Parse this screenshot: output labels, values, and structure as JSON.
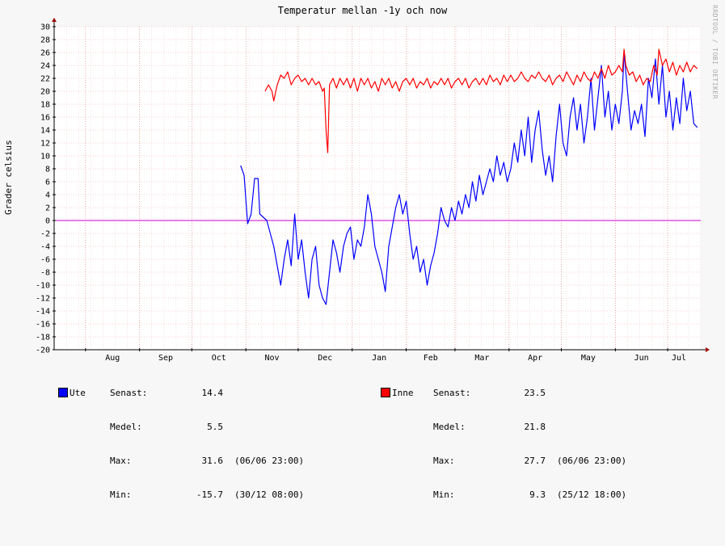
{
  "chart_data": {
    "type": "line",
    "title": "Temperatur mellan -1y och now",
    "ylabel": "Grader celsius",
    "xlabel": "",
    "ylim": [
      -20,
      30
    ],
    "yticks": [
      -20,
      -18,
      -16,
      -14,
      -12,
      -10,
      -8,
      -6,
      -4,
      -2,
      0,
      2,
      4,
      6,
      8,
      10,
      12,
      14,
      16,
      18,
      20,
      22,
      24,
      26,
      28,
      30
    ],
    "x_domain": [
      "Jul 14",
      "Jul 20"
    ],
    "months": [
      {
        "label": "Aug",
        "start": "Aug 1"
      },
      {
        "label": "Sep",
        "start": "Sep 1"
      },
      {
        "label": "Oct",
        "start": "Oct 1"
      },
      {
        "label": "Nov",
        "start": "Nov 1"
      },
      {
        "label": "Dec",
        "start": "Dec 1"
      },
      {
        "label": "Jan",
        "start": "Jan 1"
      },
      {
        "label": "Feb",
        "start": "Feb 1"
      },
      {
        "label": "Mar",
        "start": "Mar 1"
      },
      {
        "label": "Apr",
        "start": "Apr 1"
      },
      {
        "label": "May",
        "start": "May 1"
      },
      {
        "label": "Jun",
        "start": "Jun 1"
      },
      {
        "label": "Jul",
        "start": "Jul 1"
      }
    ],
    "grid": true,
    "zero_line_color": "#cc00cc",
    "series": [
      {
        "name": "Ute",
        "color": "#0000ff",
        "points": [
          [
            "Oct 29",
            8.5
          ],
          [
            "Oct 31",
            7
          ],
          [
            "Nov 2",
            -0.5
          ],
          [
            "Nov 4",
            1
          ],
          [
            "Nov 6",
            6.5
          ],
          [
            "Nov 8",
            6.5
          ],
          [
            "Nov 9",
            1
          ],
          [
            "Nov 11",
            0.5
          ],
          [
            "Nov 13",
            0
          ],
          [
            "Nov 15",
            -2
          ],
          [
            "Nov 17",
            -4
          ],
          [
            "Nov 19",
            -7
          ],
          [
            "Nov 21",
            -10
          ],
          [
            "Nov 23",
            -6
          ],
          [
            "Nov 25",
            -3
          ],
          [
            "Nov 27",
            -7
          ],
          [
            "Nov 29",
            1
          ],
          [
            "Dec 1",
            -6
          ],
          [
            "Dec 3",
            -3
          ],
          [
            "Dec 5",
            -8
          ],
          [
            "Dec 7",
            -12
          ],
          [
            "Dec 9",
            -6
          ],
          [
            "Dec 11",
            -4
          ],
          [
            "Dec 13",
            -10
          ],
          [
            "Dec 15",
            -12
          ],
          [
            "Dec 17",
            -13
          ],
          [
            "Dec 19",
            -8
          ],
          [
            "Dec 21",
            -3
          ],
          [
            "Dec 23",
            -5
          ],
          [
            "Dec 25",
            -8
          ],
          [
            "Dec 27",
            -4
          ],
          [
            "Dec 29",
            -2
          ],
          [
            "Dec 31",
            -1
          ],
          [
            "Jan 2",
            -6
          ],
          [
            "Jan 4",
            -3
          ],
          [
            "Jan 6",
            -4
          ],
          [
            "Jan 8",
            -1
          ],
          [
            "Jan 10",
            4
          ],
          [
            "Jan 12",
            1
          ],
          [
            "Jan 14",
            -4
          ],
          [
            "Jan 16",
            -6
          ],
          [
            "Jan 18",
            -8
          ],
          [
            "Jan 20",
            -11
          ],
          [
            "Jan 22",
            -4
          ],
          [
            "Jan 24",
            -1
          ],
          [
            "Jan 26",
            2
          ],
          [
            "Jan 28",
            4
          ],
          [
            "Jan 30",
            1
          ],
          [
            "Feb 1",
            3
          ],
          [
            "Feb 3",
            -2
          ],
          [
            "Feb 5",
            -6
          ],
          [
            "Feb 7",
            -4
          ],
          [
            "Feb 9",
            -8
          ],
          [
            "Feb 11",
            -6
          ],
          [
            "Feb 13",
            -10
          ],
          [
            "Feb 15",
            -7
          ],
          [
            "Feb 17",
            -5
          ],
          [
            "Feb 19",
            -2
          ],
          [
            "Feb 21",
            2
          ],
          [
            "Feb 23",
            0
          ],
          [
            "Feb 25",
            -1
          ],
          [
            "Feb 27",
            2
          ],
          [
            "Mar 1",
            0
          ],
          [
            "Mar 3",
            3
          ],
          [
            "Mar 5",
            1
          ],
          [
            "Mar 7",
            4
          ],
          [
            "Mar 9",
            2
          ],
          [
            "Mar 11",
            6
          ],
          [
            "Mar 13",
            3
          ],
          [
            "Mar 15",
            7
          ],
          [
            "Mar 17",
            4
          ],
          [
            "Mar 19",
            6
          ],
          [
            "Mar 21",
            8
          ],
          [
            "Mar 23",
            6
          ],
          [
            "Mar 25",
            10
          ],
          [
            "Mar 27",
            7
          ],
          [
            "Mar 29",
            9
          ],
          [
            "Mar 31",
            6
          ],
          [
            "Apr 2",
            8
          ],
          [
            "Apr 4",
            12
          ],
          [
            "Apr 6",
            9
          ],
          [
            "Apr 8",
            14
          ],
          [
            "Apr 10",
            10
          ],
          [
            "Apr 12",
            16
          ],
          [
            "Apr 14",
            9
          ],
          [
            "Apr 16",
            14
          ],
          [
            "Apr 18",
            17
          ],
          [
            "Apr 20",
            11
          ],
          [
            "Apr 22",
            7
          ],
          [
            "Apr 24",
            10
          ],
          [
            "Apr 26",
            6
          ],
          [
            "Apr 28",
            13
          ],
          [
            "Apr 30",
            18
          ],
          [
            "May 2",
            12
          ],
          [
            "May 4",
            10
          ],
          [
            "May 6",
            16
          ],
          [
            "May 8",
            19
          ],
          [
            "May 10",
            14
          ],
          [
            "May 12",
            18
          ],
          [
            "May 14",
            12
          ],
          [
            "May 16",
            16
          ],
          [
            "May 18",
            22
          ],
          [
            "May 20",
            14
          ],
          [
            "May 22",
            19
          ],
          [
            "May 24",
            24
          ],
          [
            "May 26",
            16
          ],
          [
            "May 28",
            20
          ],
          [
            "May 30",
            14
          ],
          [
            "Jun 1",
            18
          ],
          [
            "Jun 3",
            15
          ],
          [
            "Jun 5",
            20
          ],
          [
            "Jun 6",
            26
          ],
          [
            "Jun 8",
            20
          ],
          [
            "Jun 10",
            14
          ],
          [
            "Jun 12",
            17
          ],
          [
            "Jun 14",
            15
          ],
          [
            "Jun 16",
            18
          ],
          [
            "Jun 18",
            13
          ],
          [
            "Jun 20",
            22
          ],
          [
            "Jun 22",
            19
          ],
          [
            "Jun 24",
            25
          ],
          [
            "Jun 26",
            18
          ],
          [
            "Jun 28",
            24
          ],
          [
            "Jun 30",
            16
          ],
          [
            "Jul 2",
            20
          ],
          [
            "Jul 4",
            14
          ],
          [
            "Jul 6",
            19
          ],
          [
            "Jul 8",
            15
          ],
          [
            "Jul 10",
            22
          ],
          [
            "Jul 12",
            17
          ],
          [
            "Jul 14",
            20
          ],
          [
            "Jul 16",
            15
          ],
          [
            "Jul 18",
            14.4
          ]
        ]
      },
      {
        "name": "Inne",
        "color": "#ff0000",
        "points": [
          [
            "Nov 12",
            20
          ],
          [
            "Nov 14",
            21
          ],
          [
            "Nov 16",
            20
          ],
          [
            "Nov 17",
            18.5
          ],
          [
            "Nov 19",
            21
          ],
          [
            "Nov 21",
            22.5
          ],
          [
            "Nov 23",
            22
          ],
          [
            "Nov 25",
            23
          ],
          [
            "Nov 27",
            21
          ],
          [
            "Nov 29",
            22
          ],
          [
            "Dec 1",
            22.5
          ],
          [
            "Dec 3",
            21.5
          ],
          [
            "Dec 5",
            22
          ],
          [
            "Dec 7",
            21
          ],
          [
            "Dec 9",
            22
          ],
          [
            "Dec 11",
            21
          ],
          [
            "Dec 13",
            21.5
          ],
          [
            "Dec 15",
            20
          ],
          [
            "Dec 16",
            20.5
          ],
          [
            "Dec 17",
            14
          ],
          [
            "Dec 18",
            10.5
          ],
          [
            "Dec 19",
            21
          ],
          [
            "Dec 21",
            22
          ],
          [
            "Dec 23",
            20.5
          ],
          [
            "Dec 25",
            22
          ],
          [
            "Dec 27",
            21
          ],
          [
            "Dec 29",
            22
          ],
          [
            "Dec 31",
            20.5
          ],
          [
            "Jan 2",
            22
          ],
          [
            "Jan 4",
            20
          ],
          [
            "Jan 6",
            22
          ],
          [
            "Jan 8",
            21
          ],
          [
            "Jan 10",
            22
          ],
          [
            "Jan 12",
            20.5
          ],
          [
            "Jan 14",
            21.5
          ],
          [
            "Jan 16",
            20
          ],
          [
            "Jan 18",
            22
          ],
          [
            "Jan 20",
            21
          ],
          [
            "Jan 22",
            22
          ],
          [
            "Jan 24",
            20.5
          ],
          [
            "Jan 26",
            21.5
          ],
          [
            "Jan 28",
            20
          ],
          [
            "Jan 30",
            21.5
          ],
          [
            "Feb 1",
            22
          ],
          [
            "Feb 3",
            21
          ],
          [
            "Feb 5",
            22
          ],
          [
            "Feb 7",
            20.5
          ],
          [
            "Feb 9",
            21.5
          ],
          [
            "Feb 11",
            21
          ],
          [
            "Feb 13",
            22
          ],
          [
            "Feb 15",
            20.5
          ],
          [
            "Feb 17",
            21.5
          ],
          [
            "Feb 19",
            21
          ],
          [
            "Feb 21",
            22
          ],
          [
            "Feb 23",
            21
          ],
          [
            "Feb 25",
            22
          ],
          [
            "Feb 27",
            20.5
          ],
          [
            "Mar 1",
            21.5
          ],
          [
            "Mar 3",
            22
          ],
          [
            "Mar 5",
            21
          ],
          [
            "Mar 7",
            22
          ],
          [
            "Mar 9",
            20.5
          ],
          [
            "Mar 11",
            21.5
          ],
          [
            "Mar 13",
            22
          ],
          [
            "Mar 15",
            21
          ],
          [
            "Mar 17",
            22
          ],
          [
            "Mar 19",
            21
          ],
          [
            "Mar 21",
            22.5
          ],
          [
            "Mar 23",
            21.5
          ],
          [
            "Mar 25",
            22
          ],
          [
            "Mar 27",
            21
          ],
          [
            "Mar 29",
            22.5
          ],
          [
            "Mar 31",
            21.5
          ],
          [
            "Apr 2",
            22.5
          ],
          [
            "Apr 4",
            21.5
          ],
          [
            "Apr 6",
            22
          ],
          [
            "Apr 8",
            23
          ],
          [
            "Apr 10",
            22
          ],
          [
            "Apr 12",
            21.5
          ],
          [
            "Apr 14",
            22.5
          ],
          [
            "Apr 16",
            22
          ],
          [
            "Apr 18",
            23
          ],
          [
            "Apr 20",
            22
          ],
          [
            "Apr 22",
            21.5
          ],
          [
            "Apr 24",
            22.5
          ],
          [
            "Apr 26",
            21
          ],
          [
            "Apr 28",
            22
          ],
          [
            "Apr 30",
            22.5
          ],
          [
            "May 2",
            21.5
          ],
          [
            "May 4",
            23
          ],
          [
            "May 6",
            22
          ],
          [
            "May 8",
            21
          ],
          [
            "May 10",
            22.5
          ],
          [
            "May 12",
            21.5
          ],
          [
            "May 14",
            23
          ],
          [
            "May 16",
            22
          ],
          [
            "May 18",
            21.5
          ],
          [
            "May 20",
            23
          ],
          [
            "May 22",
            22
          ],
          [
            "May 24",
            23.5
          ],
          [
            "May 26",
            22
          ],
          [
            "May 28",
            24
          ],
          [
            "May 30",
            22.5
          ],
          [
            "Jun 1",
            23
          ],
          [
            "Jun 3",
            24
          ],
          [
            "Jun 5",
            23
          ],
          [
            "Jun 6",
            26.5
          ],
          [
            "Jun 7",
            24
          ],
          [
            "Jun 9",
            22.5
          ],
          [
            "Jun 11",
            23
          ],
          [
            "Jun 13",
            21.5
          ],
          [
            "Jun 15",
            22.5
          ],
          [
            "Jun 17",
            21
          ],
          [
            "Jun 19",
            22
          ],
          [
            "Jun 21",
            21.5
          ],
          [
            "Jun 23",
            24
          ],
          [
            "Jun 25",
            22.5
          ],
          [
            "Jun 26",
            26.5
          ],
          [
            "Jun 28",
            24
          ],
          [
            "Jun 30",
            25
          ],
          [
            "Jul 2",
            23
          ],
          [
            "Jul 4",
            24.5
          ],
          [
            "Jul 6",
            22.5
          ],
          [
            "Jul 8",
            24
          ],
          [
            "Jul 10",
            23
          ],
          [
            "Jul 12",
            24.5
          ],
          [
            "Jul 14",
            23
          ],
          [
            "Jul 16",
            24
          ],
          [
            "Jul 18",
            23.5
          ]
        ]
      }
    ]
  },
  "legend": {
    "ute": {
      "name": "Ute",
      "color": "#0000ff",
      "senast_label": "Senast:",
      "senast_value": "14.4",
      "medel_label": "Medel:",
      "medel_value": "5.5",
      "max_label": "Max:",
      "max_value": "31.6",
      "max_when": "(06/06 23:00)",
      "min_label": "Min:",
      "min_value": "-15.7",
      "min_when": "(30/12 08:00)"
    },
    "inne": {
      "name": "Inne",
      "color": "#ff0000",
      "senast_label": "Senast:",
      "senast_value": "23.5",
      "medel_label": "Medel:",
      "medel_value": "21.8",
      "max_label": "Max:",
      "max_value": "27.7",
      "max_when": "(06/06 23:00)",
      "min_label": "Min:",
      "min_value": "9.3",
      "min_when": "(25/12 18:00)"
    }
  },
  "watermark": "RRDTOOL / TOBI OETIKER"
}
